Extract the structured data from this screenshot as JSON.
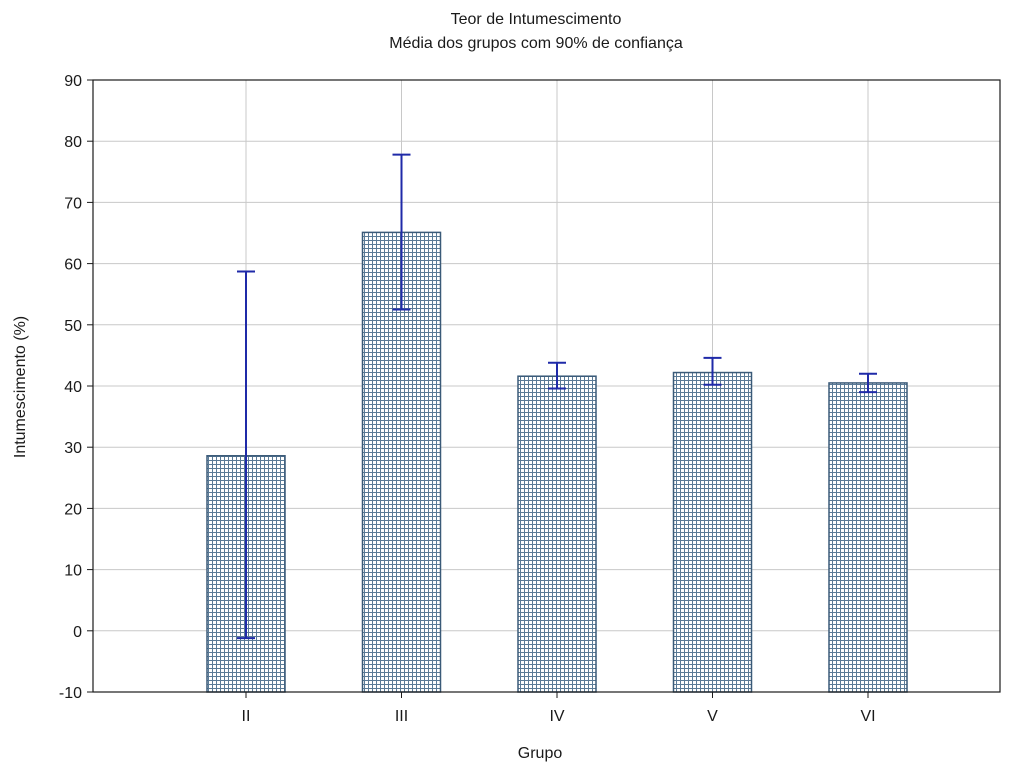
{
  "chart_data": {
    "type": "bar",
    "title": "Teor de Intumescimento",
    "subtitle": "Média dos grupos com 90% de confiança",
    "xlabel": "Grupo",
    "ylabel": "Intumescimento (%)",
    "categories": [
      "II",
      "III",
      "IV",
      "V",
      "VI"
    ],
    "values": [
      28.6,
      65.1,
      41.6,
      42.2,
      40.5
    ],
    "error_low": [
      -1.2,
      52.5,
      39.6,
      40.2,
      39.0
    ],
    "error_high": [
      58.7,
      77.8,
      43.8,
      44.6,
      42.0
    ],
    "ylim": [
      -10,
      90
    ],
    "yticks": [
      -10,
      0,
      10,
      20,
      30,
      40,
      50,
      60,
      70,
      80,
      90
    ],
    "grid": true,
    "bar_pattern": "crosshatch",
    "colors": {
      "bar_fill": "#5a7a96",
      "bar_background": "#ffffff",
      "bar_edge": "#3a5a78",
      "error_bar": "#1f2aa8",
      "grid": "#c8c8c8",
      "axis": "#1a1a1a"
    }
  }
}
